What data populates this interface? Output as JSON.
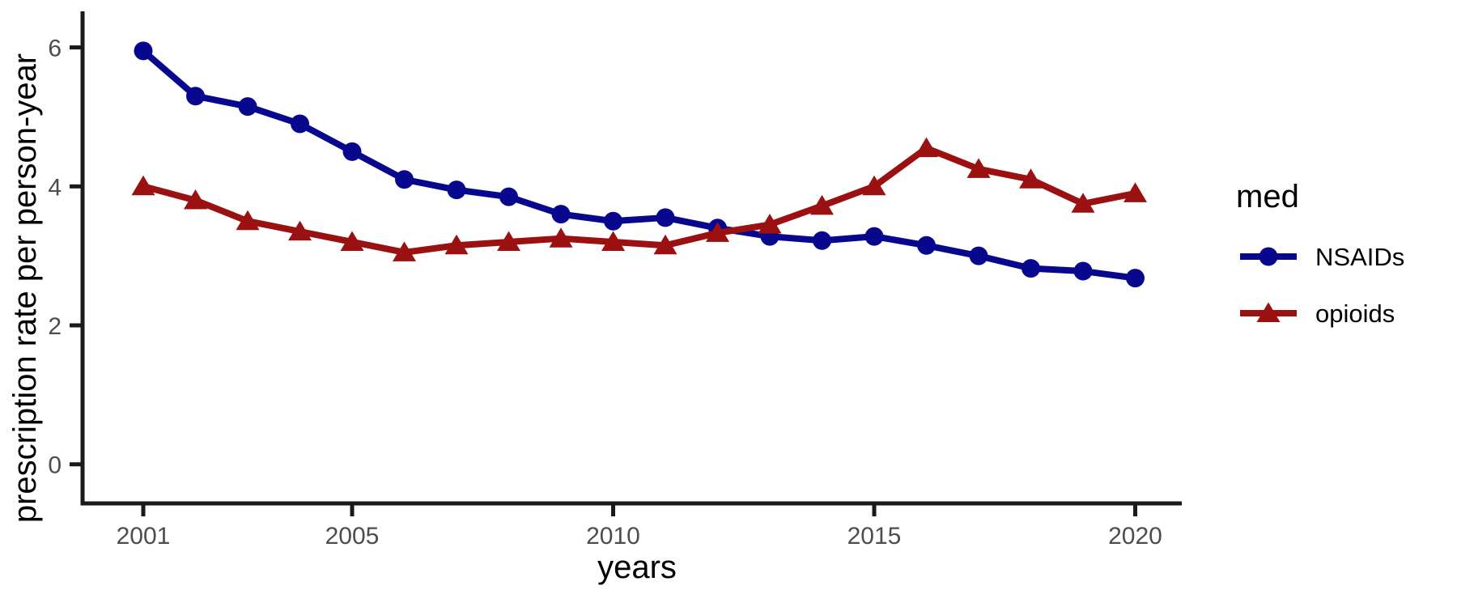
{
  "chart_data": {
    "type": "line",
    "title": "",
    "xlabel": "years",
    "ylabel": "prescription rate per person-year",
    "legend_title": "med",
    "legend_position": "right",
    "grid": false,
    "background": "#ffffff",
    "axis_color": "#1a1a1a",
    "tick_label_color": "#4d4d4d",
    "x": [
      2001,
      2002,
      2003,
      2004,
      2005,
      2006,
      2007,
      2008,
      2009,
      2010,
      2011,
      2012,
      2013,
      2014,
      2015,
      2016,
      2017,
      2018,
      2019,
      2020
    ],
    "x_ticks": [
      2001,
      2005,
      2010,
      2015,
      2020
    ],
    "x_tick_labels": [
      "2001",
      "2005",
      "2010",
      "2015",
      "2020"
    ],
    "y_ticks": [
      0,
      2,
      4,
      6
    ],
    "y_tick_labels": [
      "0",
      "2",
      "4",
      "6"
    ],
    "xlim": [
      1999.8,
      2021.1
    ],
    "ylim": [
      -0.56,
      6.5
    ],
    "series": [
      {
        "name": "NSAIDs",
        "marker": "circle",
        "color": "#08088F",
        "values": [
          5.95,
          5.3,
          5.15,
          4.9,
          4.5,
          4.1,
          3.95,
          3.85,
          3.6,
          3.5,
          3.55,
          3.4,
          3.28,
          3.22,
          3.28,
          3.15,
          3.0,
          2.82,
          2.78,
          2.68
        ]
      },
      {
        "name": "opioids",
        "marker": "triangle",
        "color": "#9B1010",
        "values": [
          4.0,
          3.8,
          3.5,
          3.35,
          3.2,
          3.05,
          3.15,
          3.2,
          3.25,
          3.2,
          3.15,
          3.33,
          3.45,
          3.72,
          4.0,
          4.55,
          4.25,
          4.1,
          3.75,
          3.9
        ]
      }
    ]
  }
}
